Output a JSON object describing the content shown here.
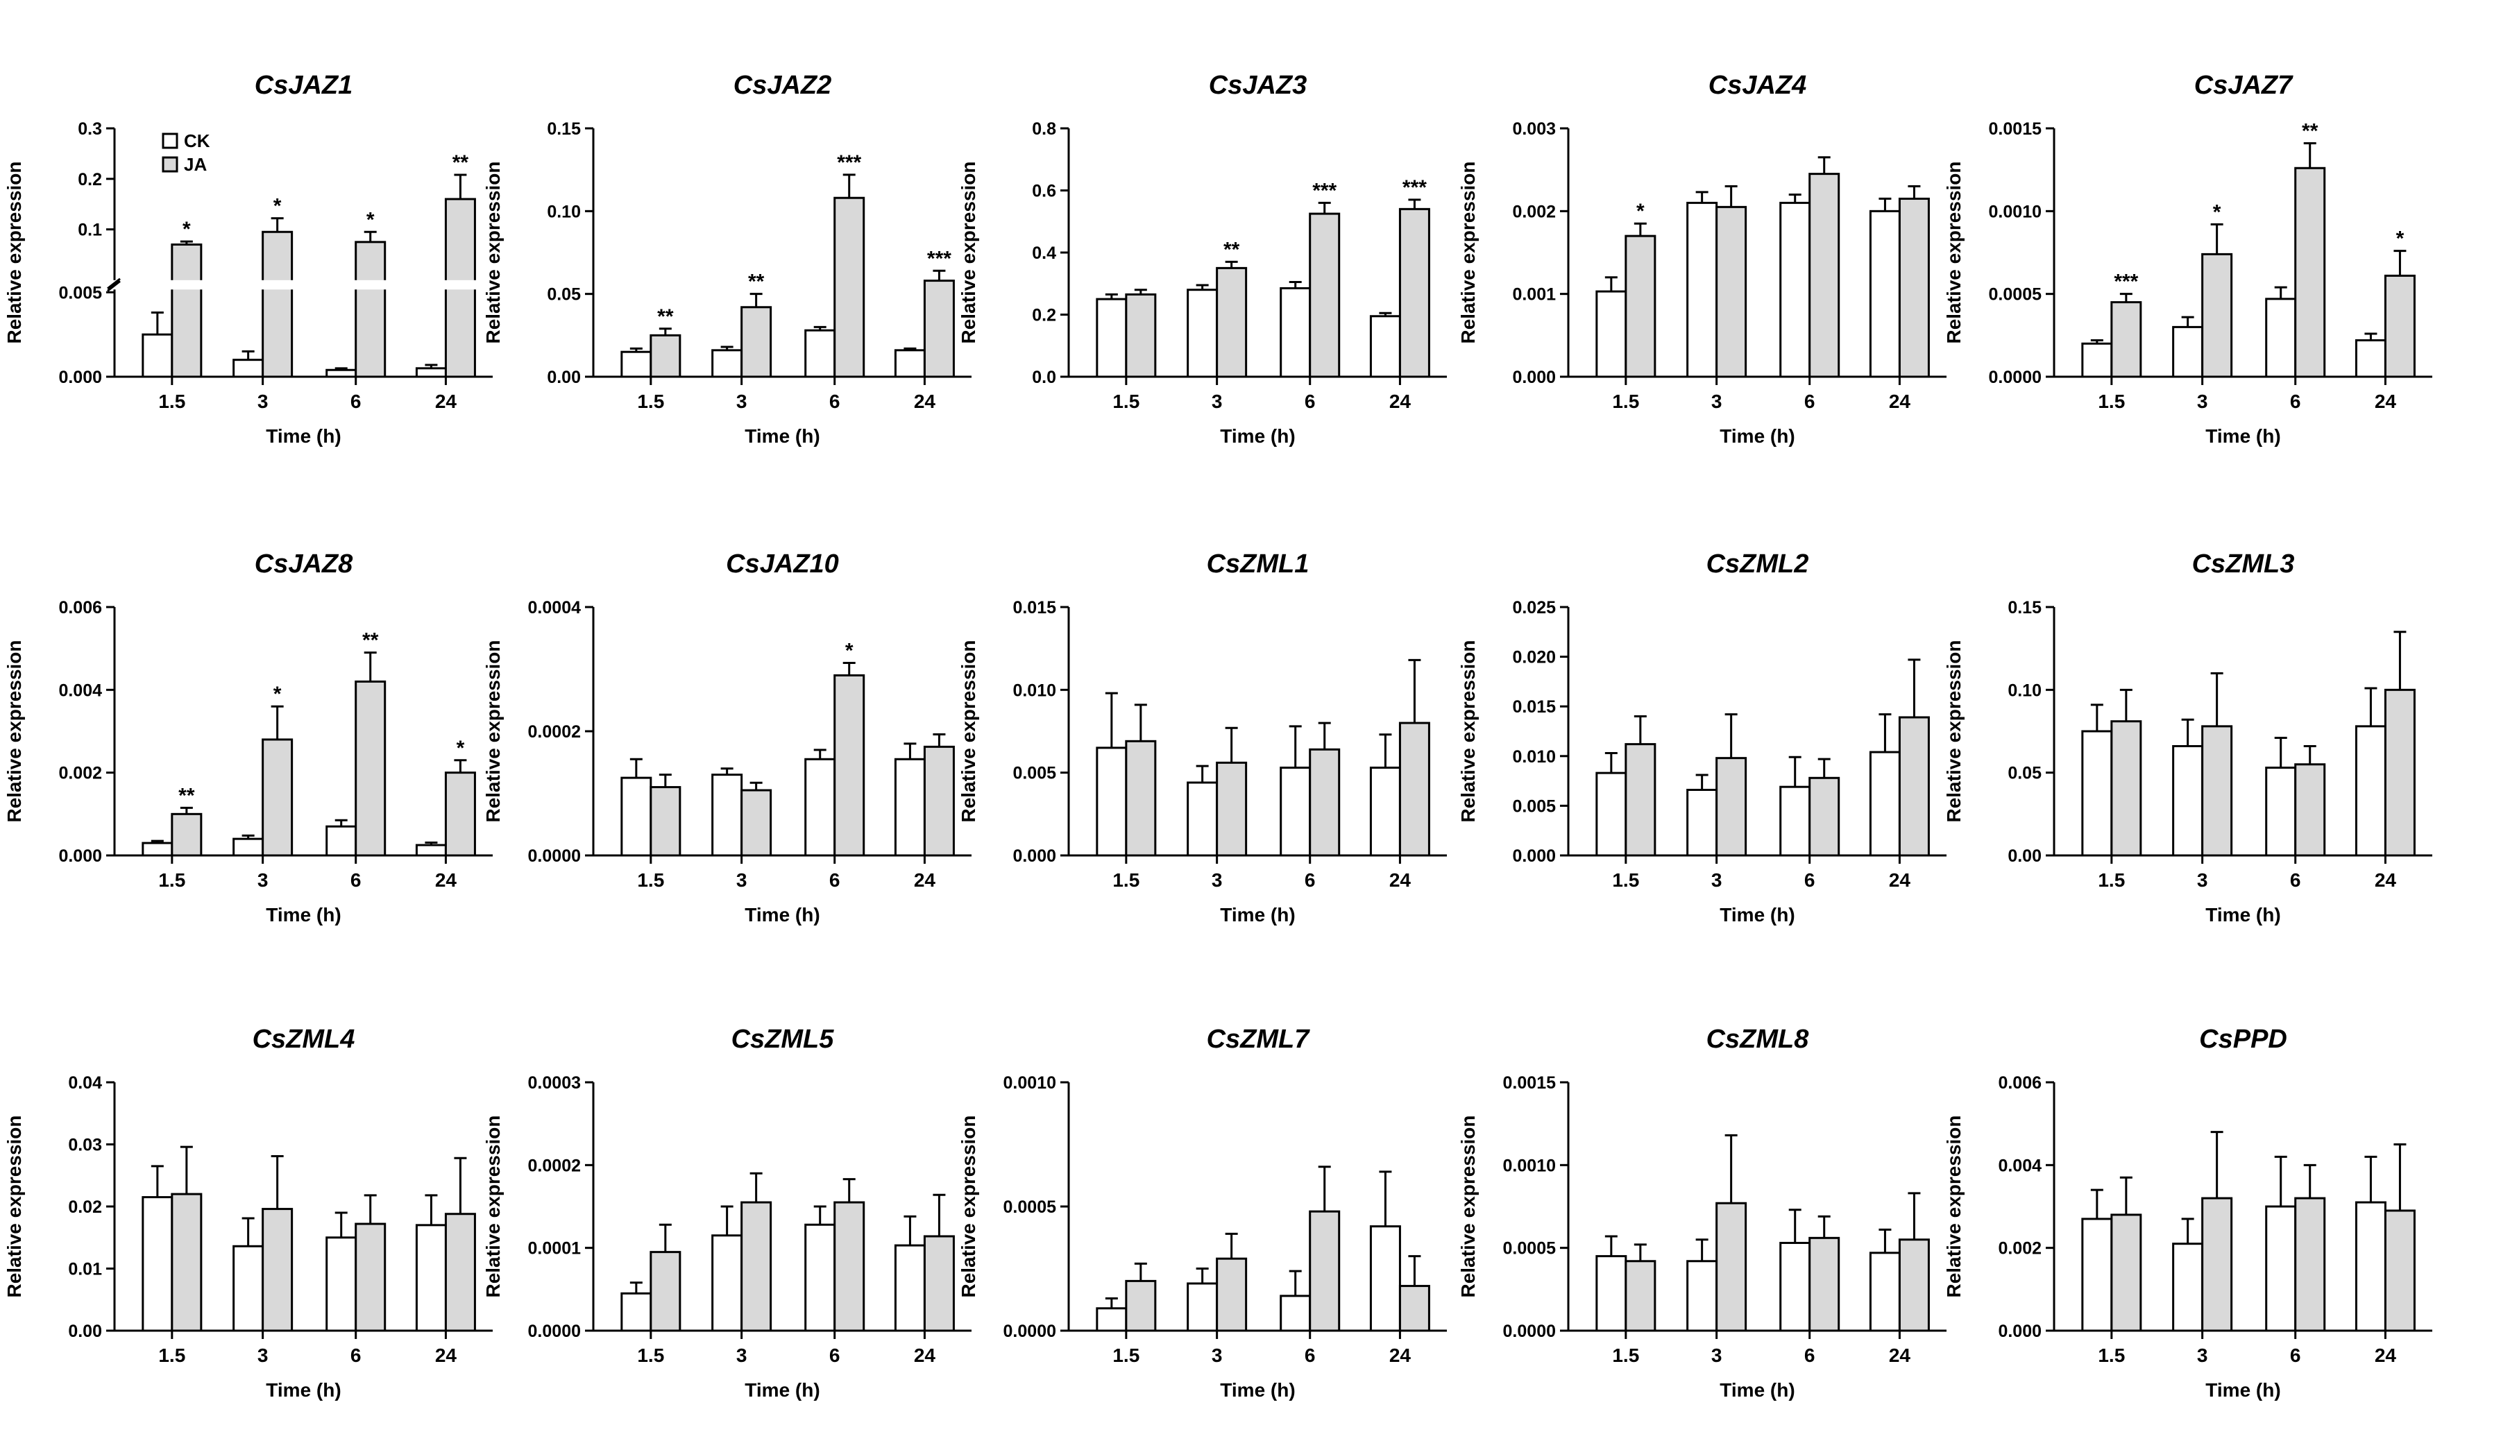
{
  "colors": {
    "ck": "#ffffff",
    "ja": "#d9d9d9",
    "stroke": "#000000"
  },
  "legend": {
    "ck_label": "CK",
    "ja_label": "JA",
    "placement": "top-left of first panel"
  },
  "chart_data": [
    {
      "type": "bar",
      "title": "CsJAZ1",
      "xlabel": "Time (h)",
      "ylabel": "Relative expression",
      "categories": [
        "1.5",
        "3",
        "6",
        "24"
      ],
      "broken_axis": true,
      "ticks": [
        "0.000",
        "0.005",
        "0.1",
        "0.2",
        "0.3"
      ],
      "lower_ylim": [
        0,
        0.005
      ],
      "upper_ylim": [
        0.005,
        0.3
      ],
      "series": [
        {
          "name": "CK",
          "values": [
            0.0025,
            0.001,
            0.0004,
            0.0005
          ],
          "errors": [
            0.0013,
            0.0005,
            0.0001,
            0.0002
          ]
        },
        {
          "name": "JA",
          "values": [
            0.07,
            0.095,
            0.075,
            0.16
          ],
          "errors": [
            0.006,
            0.027,
            0.02,
            0.048
          ]
        }
      ],
      "significance": [
        "*",
        "*",
        "*",
        "**"
      ]
    },
    {
      "type": "bar",
      "title": "CsJAZ2",
      "xlabel": "Time (h)",
      "ylabel": "Relative expression",
      "categories": [
        "1.5",
        "3",
        "6",
        "24"
      ],
      "ylim": [
        0,
        0.15
      ],
      "ticks": [
        "0.00",
        "0.05",
        "0.10",
        "0.15"
      ],
      "tick_values": [
        0,
        0.05,
        0.1,
        0.15
      ],
      "series": [
        {
          "name": "CK",
          "values": [
            0.015,
            0.016,
            0.028,
            0.016
          ],
          "errors": [
            0.002,
            0.002,
            0.002,
            0.001
          ]
        },
        {
          "name": "JA",
          "values": [
            0.025,
            0.042,
            0.108,
            0.058
          ],
          "errors": [
            0.004,
            0.008,
            0.014,
            0.006
          ]
        }
      ],
      "significance": [
        "**",
        "**",
        "***",
        "***"
      ]
    },
    {
      "type": "bar",
      "title": "CsJAZ3",
      "xlabel": "Time (h)",
      "ylabel": "Relative expression",
      "categories": [
        "1.5",
        "3",
        "6",
        "24"
      ],
      "ylim": [
        0,
        0.8
      ],
      "ticks": [
        "0.0",
        "0.2",
        "0.4",
        "0.6",
        "0.8"
      ],
      "tick_values": [
        0,
        0.2,
        0.4,
        0.6,
        0.8
      ],
      "series": [
        {
          "name": "CK",
          "values": [
            0.25,
            0.28,
            0.285,
            0.195
          ],
          "errors": [
            0.015,
            0.015,
            0.02,
            0.01
          ]
        },
        {
          "name": "JA",
          "values": [
            0.265,
            0.35,
            0.525,
            0.54
          ],
          "errors": [
            0.015,
            0.02,
            0.035,
            0.03
          ]
        }
      ],
      "significance": [
        "",
        "**",
        "***",
        "***"
      ]
    },
    {
      "type": "bar",
      "title": "CsJAZ4",
      "xlabel": "Time (h)",
      "ylabel": "Relative expression",
      "categories": [
        "1.5",
        "3",
        "6",
        "24"
      ],
      "ylim": [
        0,
        0.003
      ],
      "ticks": [
        "0.000",
        "0.001",
        "0.002",
        "0.003"
      ],
      "tick_values": [
        0,
        0.001,
        0.002,
        0.003
      ],
      "series": [
        {
          "name": "CK",
          "values": [
            0.00103,
            0.0021,
            0.0021,
            0.002
          ],
          "errors": [
            0.00017,
            0.00013,
            0.0001,
            0.00015
          ]
        },
        {
          "name": "JA",
          "values": [
            0.0017,
            0.00205,
            0.00245,
            0.00215
          ],
          "errors": [
            0.00015,
            0.00025,
            0.0002,
            0.00015
          ]
        }
      ],
      "significance": [
        "*",
        "",
        "",
        ""
      ]
    },
    {
      "type": "bar",
      "title": "CsJAZ7",
      "xlabel": "Time (h)",
      "ylabel": "Relative expression",
      "categories": [
        "1.5",
        "3",
        "6",
        "24"
      ],
      "ylim": [
        0,
        0.0015
      ],
      "ticks": [
        "0.0000",
        "0.0005",
        "0.0010",
        "0.0015"
      ],
      "tick_values": [
        0,
        0.0005,
        0.001,
        0.0015
      ],
      "series": [
        {
          "name": "CK",
          "values": [
            0.0002,
            0.0003,
            0.00047,
            0.00022
          ],
          "errors": [
            2e-05,
            6e-05,
            7e-05,
            4e-05
          ]
        },
        {
          "name": "JA",
          "values": [
            0.00045,
            0.00074,
            0.00126,
            0.00061
          ],
          "errors": [
            5e-05,
            0.00018,
            0.00015,
            0.00015
          ]
        }
      ],
      "significance": [
        "***",
        "*",
        "**",
        "*"
      ]
    },
    {
      "type": "bar",
      "title": "CsJAZ8",
      "xlabel": "Time (h)",
      "ylabel": "Relative expression",
      "categories": [
        "1.5",
        "3",
        "6",
        "24"
      ],
      "ylim": [
        0,
        0.006
      ],
      "ticks": [
        "0.000",
        "0.002",
        "0.004",
        "0.006"
      ],
      "tick_values": [
        0,
        0.002,
        0.004,
        0.006
      ],
      "series": [
        {
          "name": "CK",
          "values": [
            0.0003,
            0.0004,
            0.0007,
            0.00025
          ],
          "errors": [
            5e-05,
            8e-05,
            0.00015,
            6e-05
          ]
        },
        {
          "name": "JA",
          "values": [
            0.001,
            0.0028,
            0.0042,
            0.002
          ],
          "errors": [
            0.00015,
            0.0008,
            0.0007,
            0.0003
          ]
        }
      ],
      "significance": [
        "**",
        "*",
        "**",
        "*"
      ]
    },
    {
      "type": "bar",
      "title": "CsJAZ10",
      "xlabel": "Time (h)",
      "ylabel": "Relative expression",
      "categories": [
        "1.5",
        "3",
        "6",
        "24"
      ],
      "ylim": [
        0,
        0.0004
      ],
      "ticks": [
        "0.0000",
        "0.0002",
        "0.0004"
      ],
      "tick_values": [
        0,
        0.0002,
        0.0004
      ],
      "series": [
        {
          "name": "CK",
          "values": [
            0.000125,
            0.00013,
            0.000155,
            0.000155
          ],
          "errors": [
            3e-05,
            1e-05,
            1.5e-05,
            2.5e-05
          ]
        },
        {
          "name": "JA",
          "values": [
            0.00011,
            0.000105,
            0.00029,
            0.000175
          ],
          "errors": [
            2e-05,
            1.2e-05,
            2e-05,
            2e-05
          ]
        }
      ],
      "significance": [
        "",
        "",
        "*",
        ""
      ]
    },
    {
      "type": "bar",
      "title": "CsZML1",
      "xlabel": "Time (h)",
      "ylabel": "Relative expression",
      "categories": [
        "1.5",
        "3",
        "6",
        "24"
      ],
      "ylim": [
        0,
        0.015
      ],
      "ticks": [
        "0.000",
        "0.005",
        "0.010",
        "0.015"
      ],
      "tick_values": [
        0,
        0.005,
        0.01,
        0.015
      ],
      "series": [
        {
          "name": "CK",
          "values": [
            0.0065,
            0.0044,
            0.0053,
            0.0053
          ],
          "errors": [
            0.0033,
            0.001,
            0.0025,
            0.002
          ]
        },
        {
          "name": "JA",
          "values": [
            0.0069,
            0.0056,
            0.0064,
            0.008
          ],
          "errors": [
            0.0022,
            0.0021,
            0.0016,
            0.0038
          ]
        }
      ],
      "significance": [
        "",
        "",
        "",
        ""
      ]
    },
    {
      "type": "bar",
      "title": "CsZML2",
      "xlabel": "Time (h)",
      "ylabel": "Relative expression",
      "categories": [
        "1.5",
        "3",
        "6",
        "24"
      ],
      "ylim": [
        0,
        0.025
      ],
      "ticks": [
        "0.000",
        "0.005",
        "0.010",
        "0.015",
        "0.020",
        "0.025"
      ],
      "tick_values": [
        0,
        0.005,
        0.01,
        0.015,
        0.02,
        0.025
      ],
      "series": [
        {
          "name": "CK",
          "values": [
            0.0083,
            0.0066,
            0.0069,
            0.0104
          ],
          "errors": [
            0.002,
            0.0015,
            0.003,
            0.0038
          ]
        },
        {
          "name": "JA",
          "values": [
            0.0112,
            0.0098,
            0.0078,
            0.0139
          ],
          "errors": [
            0.0028,
            0.0044,
            0.0019,
            0.0058
          ]
        }
      ],
      "significance": [
        "",
        "",
        "",
        ""
      ]
    },
    {
      "type": "bar",
      "title": "CsZML3",
      "xlabel": "Time (h)",
      "ylabel": "Relative expression",
      "categories": [
        "1.5",
        "3",
        "6",
        "24"
      ],
      "ylim": [
        0,
        0.15
      ],
      "ticks": [
        "0.00",
        "0.05",
        "0.10",
        "0.15"
      ],
      "tick_values": [
        0,
        0.05,
        0.1,
        0.15
      ],
      "series": [
        {
          "name": "CK",
          "values": [
            0.075,
            0.066,
            0.053,
            0.078
          ],
          "errors": [
            0.016,
            0.016,
            0.018,
            0.023
          ]
        },
        {
          "name": "JA",
          "values": [
            0.081,
            0.078,
            0.055,
            0.1
          ],
          "errors": [
            0.019,
            0.032,
            0.011,
            0.035
          ]
        }
      ],
      "significance": [
        "",
        "",
        "",
        ""
      ]
    },
    {
      "type": "bar",
      "title": "CsZML4",
      "xlabel": "Time (h)",
      "ylabel": "Relative expression",
      "categories": [
        "1.5",
        "3",
        "6",
        "24"
      ],
      "ylim": [
        0,
        0.04
      ],
      "ticks": [
        "0.00",
        "0.01",
        "0.02",
        "0.03",
        "0.04"
      ],
      "tick_values": [
        0,
        0.01,
        0.02,
        0.03,
        0.04
      ],
      "series": [
        {
          "name": "CK",
          "values": [
            0.0215,
            0.0136,
            0.015,
            0.017
          ],
          "errors": [
            0.005,
            0.0045,
            0.004,
            0.0048
          ]
        },
        {
          "name": "JA",
          "values": [
            0.022,
            0.0196,
            0.0172,
            0.0188
          ],
          "errors": [
            0.0076,
            0.0085,
            0.0046,
            0.009
          ]
        }
      ],
      "significance": [
        "",
        "",
        "",
        ""
      ]
    },
    {
      "type": "bar",
      "title": "CsZML5",
      "xlabel": "Time (h)",
      "ylabel": "Relative expression",
      "categories": [
        "1.5",
        "3",
        "6",
        "24"
      ],
      "ylim": [
        0,
        0.0003
      ],
      "ticks": [
        "0.0000",
        "0.0001",
        "0.0002",
        "0.0003"
      ],
      "tick_values": [
        0,
        0.0001,
        0.0002,
        0.0003
      ],
      "series": [
        {
          "name": "CK",
          "values": [
            4.5e-05,
            0.000115,
            0.000128,
            0.000103
          ],
          "errors": [
            1.3e-05,
            3.5e-05,
            2.2e-05,
            3.5e-05
          ]
        },
        {
          "name": "JA",
          "values": [
            9.5e-05,
            0.000155,
            0.000155,
            0.000114
          ],
          "errors": [
            3.3e-05,
            3.5e-05,
            2.8e-05,
            5e-05
          ]
        }
      ],
      "significance": [
        "",
        "",
        "",
        ""
      ]
    },
    {
      "type": "bar",
      "title": "CsZML7",
      "xlabel": "Time (h)",
      "ylabel": "Relative expression",
      "categories": [
        "1.5",
        "3",
        "6",
        "24"
      ],
      "ylim": [
        0,
        0.001
      ],
      "ticks": [
        "0.0000",
        "0.0005",
        "0.0010"
      ],
      "tick_values": [
        0,
        0.0005,
        0.001
      ],
      "series": [
        {
          "name": "CK",
          "values": [
            9e-05,
            0.00019,
            0.00014,
            0.00042
          ],
          "errors": [
            4e-05,
            6e-05,
            0.0001,
            0.00022
          ]
        },
        {
          "name": "JA",
          "values": [
            0.0002,
            0.00029,
            0.00048,
            0.00018
          ],
          "errors": [
            7e-05,
            0.0001,
            0.00018,
            0.00012
          ]
        }
      ],
      "significance": [
        "",
        "",
        "",
        ""
      ]
    },
    {
      "type": "bar",
      "title": "CsZML8",
      "xlabel": "Time (h)",
      "ylabel": "Relative expression",
      "categories": [
        "1.5",
        "3",
        "6",
        "24"
      ],
      "ylim": [
        0,
        0.0015
      ],
      "ticks": [
        "0.0000",
        "0.0005",
        "0.0010",
        "0.0015"
      ],
      "tick_values": [
        0,
        0.0005,
        0.001,
        0.0015
      ],
      "series": [
        {
          "name": "CK",
          "values": [
            0.00045,
            0.00042,
            0.00053,
            0.00047
          ],
          "errors": [
            0.00012,
            0.00013,
            0.0002,
            0.00014
          ]
        },
        {
          "name": "JA",
          "values": [
            0.00042,
            0.00077,
            0.00056,
            0.00055
          ],
          "errors": [
            0.0001,
            0.00041,
            0.00013,
            0.00028
          ]
        }
      ],
      "significance": [
        "",
        "",
        "",
        ""
      ]
    },
    {
      "type": "bar",
      "title": "CsPPD",
      "xlabel": "Time (h)",
      "ylabel": "Relative expression",
      "categories": [
        "1.5",
        "3",
        "6",
        "24"
      ],
      "ylim": [
        0,
        0.006
      ],
      "ticks": [
        "0.000",
        "0.002",
        "0.004",
        "0.006"
      ],
      "tick_values": [
        0,
        0.002,
        0.004,
        0.006
      ],
      "series": [
        {
          "name": "CK",
          "values": [
            0.0027,
            0.0021,
            0.003,
            0.0031
          ],
          "errors": [
            0.0007,
            0.0006,
            0.0012,
            0.0011
          ]
        },
        {
          "name": "JA",
          "values": [
            0.0028,
            0.0032,
            0.0032,
            0.0029
          ],
          "errors": [
            0.0009,
            0.0016,
            0.0008,
            0.0016
          ]
        }
      ],
      "significance": [
        "",
        "",
        "",
        ""
      ]
    }
  ]
}
